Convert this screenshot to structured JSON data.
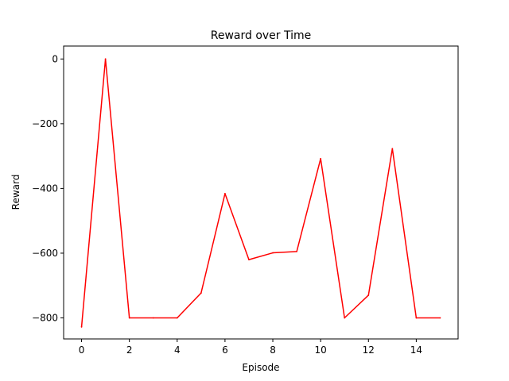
{
  "chart_data": {
    "type": "line",
    "title": "Reward over Time",
    "xlabel": "Episode",
    "ylabel": "Reward",
    "xlim": [
      -0.75,
      15.75
    ],
    "ylim": [
      -865,
      40
    ],
    "x_ticks": [
      0,
      2,
      4,
      6,
      8,
      10,
      12,
      14
    ],
    "y_ticks": [
      0,
      -200,
      -400,
      -600,
      -800
    ],
    "x_tick_labels": [
      "0",
      "2",
      "4",
      "6",
      "8",
      "10",
      "12",
      "14"
    ],
    "y_tick_labels": [
      "0",
      "−200",
      "−400",
      "−600",
      "−800"
    ],
    "grid": false,
    "series": [
      {
        "color": "#ff0000",
        "x": [
          0,
          1,
          2,
          3,
          4,
          5,
          6,
          7,
          8,
          9,
          10,
          11,
          12,
          13,
          14,
          15
        ],
        "y": [
          -828,
          0,
          -800,
          -800,
          -800,
          -723,
          -416,
          -620,
          -599,
          -595,
          -308,
          -800,
          -730,
          -277,
          -800,
          -800
        ]
      }
    ]
  }
}
